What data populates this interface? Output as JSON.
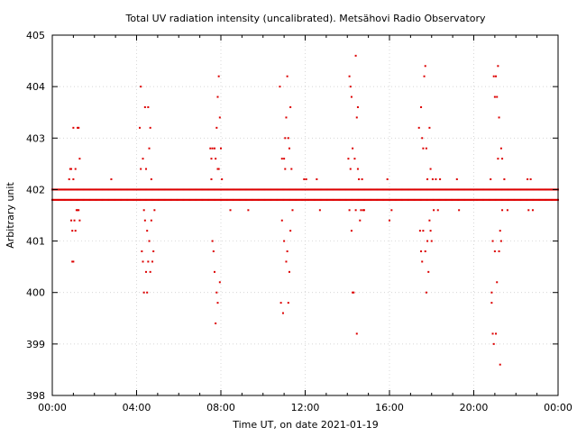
{
  "chart_data": {
    "type": "scatter",
    "title": "Total UV radiation intensity (uncalibrated). Metsähovi Radio Observatory",
    "xlabel": "Time UT, on date 2021-01-19",
    "ylabel": "Arbitrary unit",
    "xlim_hours": [
      0,
      24
    ],
    "ylim": [
      398,
      405
    ],
    "x_ticks": [
      {
        "value": 0,
        "label": "00:00"
      },
      {
        "value": 4,
        "label": "04:00"
      },
      {
        "value": 8,
        "label": "08:00"
      },
      {
        "value": 12,
        "label": "12:00"
      },
      {
        "value": 16,
        "label": "16:00"
      },
      {
        "value": 20,
        "label": "20:00"
      },
      {
        "value": 24,
        "label": "00:00"
      }
    ],
    "y_ticks": [
      {
        "value": 398,
        "label": "398"
      },
      {
        "value": 399,
        "label": "399"
      },
      {
        "value": 400,
        "label": "400"
      },
      {
        "value": 401,
        "label": "401"
      },
      {
        "value": 402,
        "label": "402"
      },
      {
        "value": 403,
        "label": "403"
      },
      {
        "value": 404,
        "label": "404"
      },
      {
        "value": 405,
        "label": "405"
      }
    ],
    "grid": true,
    "marker_color": "#dd0000",
    "baseline_bands": [
      {
        "y": 402.0,
        "x_from": 0.0,
        "x_to": 24.0
      },
      {
        "y": 401.8,
        "x_from": 0.0,
        "x_to": 24.0
      }
    ],
    "points": [
      [
        0.9,
        402.4
      ],
      [
        0.9,
        401.4
      ],
      [
        0.95,
        401.2
      ],
      [
        0.95,
        400.6
      ],
      [
        1.0,
        403.2
      ],
      [
        1.0,
        402.2
      ],
      [
        1.0,
        400.6
      ],
      [
        1.05,
        401.4
      ],
      [
        1.1,
        401.2
      ],
      [
        1.1,
        402.4
      ],
      [
        1.15,
        401.6
      ],
      [
        1.2,
        403.2
      ],
      [
        1.2,
        401.6
      ],
      [
        1.25,
        403.2
      ],
      [
        1.25,
        401.6
      ],
      [
        1.3,
        402.6
      ],
      [
        1.3,
        401.4
      ],
      [
        0.8,
        402.2
      ],
      [
        0.85,
        402.4
      ],
      [
        2.8,
        402.2
      ],
      [
        4.15,
        403.2
      ],
      [
        4.2,
        404.0
      ],
      [
        4.2,
        402.4
      ],
      [
        4.25,
        400.8
      ],
      [
        4.3,
        402.6
      ],
      [
        4.3,
        400.6
      ],
      [
        4.35,
        400.0
      ],
      [
        4.35,
        401.6
      ],
      [
        4.4,
        403.6
      ],
      [
        4.4,
        401.4
      ],
      [
        4.45,
        400.4
      ],
      [
        4.45,
        402.4
      ],
      [
        4.5,
        401.2
      ],
      [
        4.5,
        400.0
      ],
      [
        4.55,
        403.6
      ],
      [
        4.55,
        400.6
      ],
      [
        4.6,
        402.8
      ],
      [
        4.6,
        401.0
      ],
      [
        4.65,
        400.4
      ],
      [
        4.65,
        403.2
      ],
      [
        4.7,
        402.2
      ],
      [
        4.7,
        401.4
      ],
      [
        4.75,
        400.6
      ],
      [
        4.8,
        400.8
      ],
      [
        4.85,
        401.6
      ],
      [
        7.5,
        402.8
      ],
      [
        7.55,
        402.6
      ],
      [
        7.6,
        401.0
      ],
      [
        7.6,
        402.8
      ],
      [
        7.65,
        400.8
      ],
      [
        7.7,
        402.8
      ],
      [
        7.7,
        400.4
      ],
      [
        7.75,
        399.4
      ],
      [
        7.75,
        402.6
      ],
      [
        7.8,
        400.0
      ],
      [
        7.8,
        403.2
      ],
      [
        7.85,
        403.8
      ],
      [
        7.85,
        399.8
      ],
      [
        7.9,
        404.2
      ],
      [
        7.9,
        402.4
      ],
      [
        7.95,
        403.4
      ],
      [
        7.95,
        400.2
      ],
      [
        8.0,
        402.8
      ],
      [
        8.05,
        402.2
      ],
      [
        7.55,
        402.2
      ],
      [
        7.85,
        402.4
      ],
      [
        8.45,
        401.6
      ],
      [
        9.3,
        401.6
      ],
      [
        10.8,
        404.0
      ],
      [
        10.85,
        399.8
      ],
      [
        10.9,
        401.4
      ],
      [
        10.9,
        402.6
      ],
      [
        10.95,
        399.6
      ],
      [
        11.0,
        402.6
      ],
      [
        11.0,
        401.0
      ],
      [
        11.05,
        403.0
      ],
      [
        11.1,
        403.4
      ],
      [
        11.1,
        400.6
      ],
      [
        11.15,
        404.2
      ],
      [
        11.15,
        400.8
      ],
      [
        11.2,
        403.0
      ],
      [
        11.2,
        399.8
      ],
      [
        11.25,
        402.8
      ],
      [
        11.25,
        400.4
      ],
      [
        11.3,
        403.6
      ],
      [
        11.3,
        401.2
      ],
      [
        11.35,
        402.4
      ],
      [
        11.4,
        401.6
      ],
      [
        11.05,
        402.4
      ],
      [
        11.95,
        402.2
      ],
      [
        12.05,
        402.2
      ],
      [
        12.55,
        402.2
      ],
      [
        12.7,
        401.6
      ],
      [
        14.05,
        402.6
      ],
      [
        14.1,
        404.2
      ],
      [
        14.1,
        401.6
      ],
      [
        14.15,
        404.0
      ],
      [
        14.15,
        402.4
      ],
      [
        14.2,
        403.8
      ],
      [
        14.2,
        401.2
      ],
      [
        14.25,
        402.8
      ],
      [
        14.25,
        400.0
      ],
      [
        14.3,
        400.0
      ],
      [
        14.35,
        402.6
      ],
      [
        14.4,
        404.6
      ],
      [
        14.4,
        401.6
      ],
      [
        14.45,
        403.4
      ],
      [
        14.45,
        399.2
      ],
      [
        14.5,
        403.6
      ],
      [
        14.5,
        402.4
      ],
      [
        14.55,
        402.2
      ],
      [
        14.6,
        401.4
      ],
      [
        14.65,
        401.6
      ],
      [
        14.7,
        402.2
      ],
      [
        14.75,
        401.6
      ],
      [
        14.8,
        401.6
      ],
      [
        15.9,
        402.2
      ],
      [
        16.0,
        401.4
      ],
      [
        16.1,
        401.6
      ],
      [
        17.4,
        403.2
      ],
      [
        17.45,
        401.2
      ],
      [
        17.5,
        403.6
      ],
      [
        17.5,
        400.8
      ],
      [
        17.55,
        403.0
      ],
      [
        17.55,
        400.6
      ],
      [
        17.6,
        402.8
      ],
      [
        17.6,
        401.2
      ],
      [
        17.65,
        404.2
      ],
      [
        17.7,
        404.4
      ],
      [
        17.7,
        400.8
      ],
      [
        17.75,
        402.8
      ],
      [
        17.75,
        400.0
      ],
      [
        17.8,
        401.0
      ],
      [
        17.8,
        402.2
      ],
      [
        17.85,
        400.4
      ],
      [
        17.9,
        403.2
      ],
      [
        17.9,
        401.4
      ],
      [
        17.95,
        402.4
      ],
      [
        17.95,
        401.2
      ],
      [
        18.0,
        401.0
      ],
      [
        18.05,
        402.2
      ],
      [
        18.1,
        401.6
      ],
      [
        18.2,
        402.2
      ],
      [
        18.3,
        401.6
      ],
      [
        18.4,
        402.2
      ],
      [
        19.2,
        402.2
      ],
      [
        19.3,
        401.6
      ],
      [
        20.8,
        402.2
      ],
      [
        20.85,
        399.8
      ],
      [
        20.85,
        400.0
      ],
      [
        20.9,
        401.0
      ],
      [
        20.9,
        399.2
      ],
      [
        20.95,
        404.2
      ],
      [
        20.95,
        399.0
      ],
      [
        21.0,
        403.8
      ],
      [
        21.0,
        400.8
      ],
      [
        21.05,
        404.2
      ],
      [
        21.05,
        399.2
      ],
      [
        21.1,
        403.8
      ],
      [
        21.1,
        400.2
      ],
      [
        21.15,
        404.4
      ],
      [
        21.15,
        402.6
      ],
      [
        21.2,
        403.4
      ],
      [
        21.2,
        400.8
      ],
      [
        21.25,
        398.6
      ],
      [
        21.25,
        401.2
      ],
      [
        21.3,
        402.8
      ],
      [
        21.3,
        401.0
      ],
      [
        21.35,
        402.6
      ],
      [
        21.35,
        401.6
      ],
      [
        21.45,
        402.2
      ],
      [
        21.6,
        401.6
      ],
      [
        22.55,
        402.2
      ],
      [
        22.6,
        401.6
      ],
      [
        22.7,
        402.2
      ],
      [
        22.8,
        401.6
      ]
    ]
  }
}
